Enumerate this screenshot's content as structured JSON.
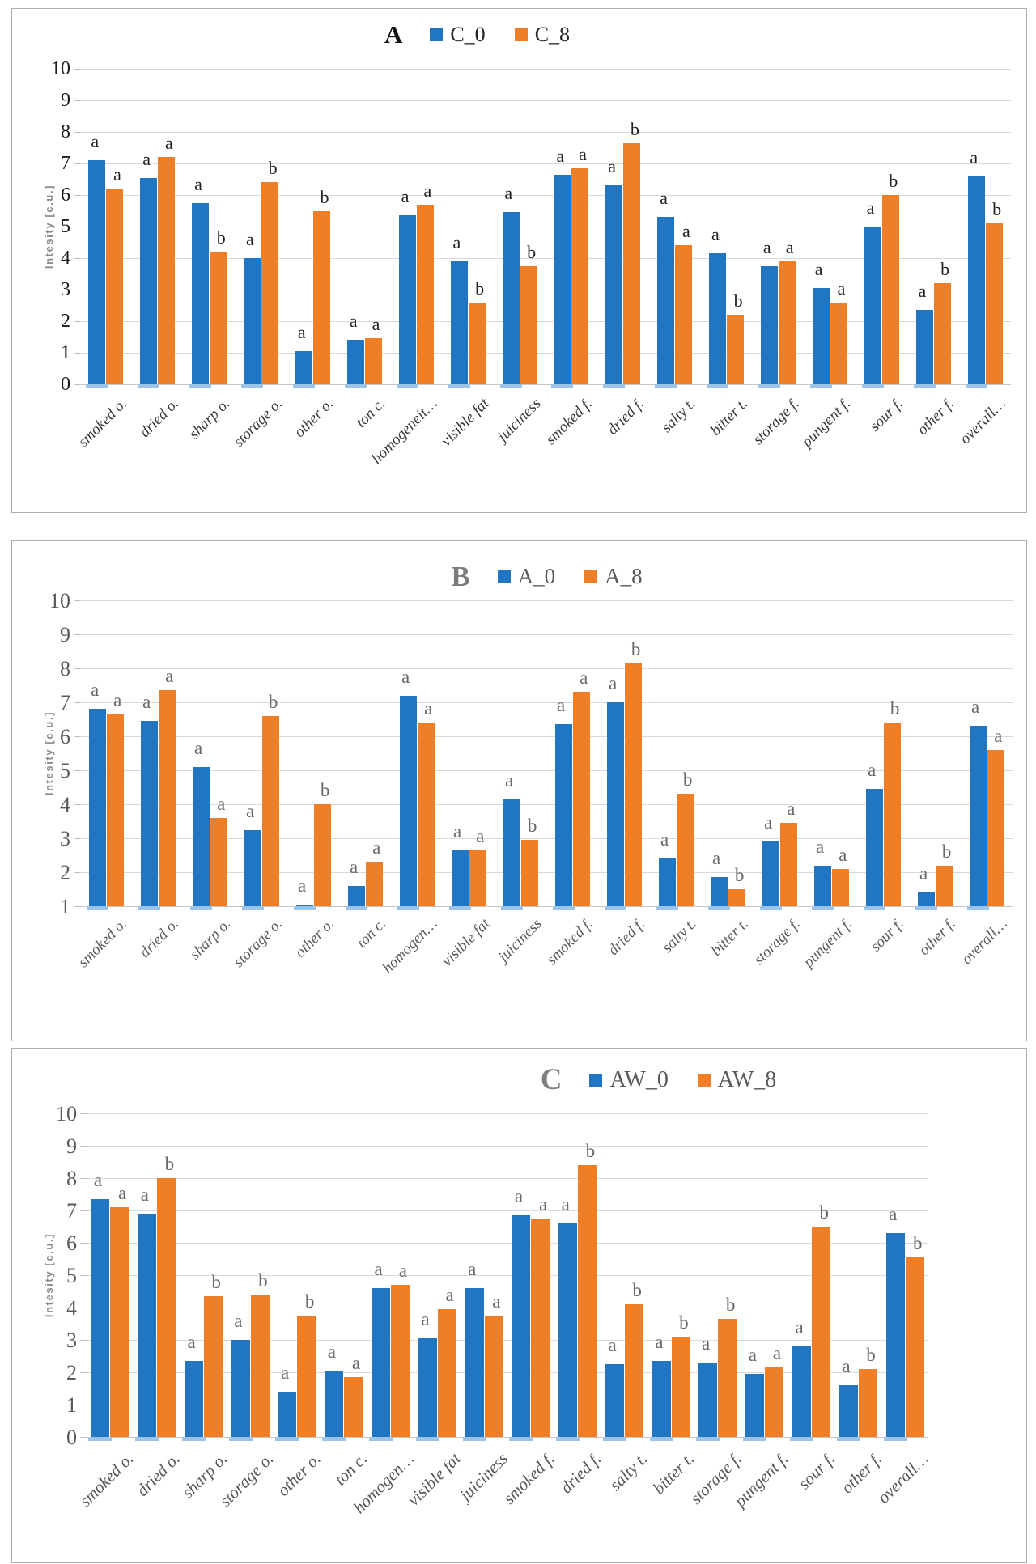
{
  "figure": {
    "y_axis_title": "Intesity [c.u.]",
    "significance_letters": [
      "a",
      "b"
    ]
  },
  "chart_data": [
    {
      "type": "bar",
      "title": "A",
      "ylabel": "Intesity [c.u.]",
      "ylim": [
        0,
        10
      ],
      "grid": true,
      "legend_position": "top",
      "categories": [
        "smoked o.",
        "dried o.",
        "sharp o.",
        "storage o.",
        "other o.",
        "ton c.",
        "homogeneit…",
        "visible fat",
        "juiciness",
        "smoked f.",
        "dried f.",
        "salty t.",
        "bitter t.",
        "storage f.",
        "pungent f.",
        "sour f.",
        "other f.",
        "overall…"
      ],
      "series": [
        {
          "name": "C_0",
          "color": "#2176C4",
          "values": [
            7.1,
            6.55,
            5.75,
            4.0,
            1.05,
            1.4,
            5.35,
            3.9,
            5.45,
            6.65,
            6.3,
            5.3,
            4.15,
            3.75,
            3.05,
            5.0,
            2.35,
            6.6
          ],
          "letters": [
            "a",
            "a",
            "a",
            "a",
            "a",
            "a",
            "a",
            "a",
            "a",
            "a",
            "a",
            "a",
            "a",
            "a",
            "a",
            "a",
            "a",
            "a"
          ]
        },
        {
          "name": "C_8",
          "color": "#F07E27",
          "values": [
            6.2,
            7.2,
            4.2,
            6.4,
            5.5,
            1.45,
            5.7,
            2.6,
            3.75,
            6.85,
            7.65,
            4.4,
            2.2,
            3.9,
            2.6,
            6.0,
            3.2,
            5.1
          ],
          "letters": [
            "a",
            "a",
            "b",
            "b",
            "b",
            "a",
            "a",
            "b",
            "b",
            "a",
            "b",
            "a",
            "b",
            "a",
            "a",
            "b",
            "b",
            "b"
          ]
        }
      ]
    },
    {
      "type": "bar",
      "title": "B",
      "ylabel": "Intesity [c.u.]",
      "ylim": [
        1,
        10
      ],
      "grid": true,
      "legend_position": "top",
      "categories": [
        "smoked o.",
        "dried o.",
        "sharp o.",
        "storage o.",
        "other o.",
        "ton c.",
        "homogen…",
        "visible fat",
        "juiciness",
        "smoked f.",
        "dried f.",
        "salty t.",
        "bitter t.",
        "storage f.",
        "pungent f.",
        "sour f.",
        "other f.",
        "overall…"
      ],
      "series": [
        {
          "name": "A_0",
          "color": "#2176C4",
          "values": [
            6.8,
            6.45,
            5.1,
            3.25,
            1.05,
            1.6,
            7.2,
            2.65,
            4.15,
            6.35,
            7.0,
            2.4,
            1.85,
            2.9,
            2.2,
            4.45,
            1.4,
            6.3
          ],
          "letters": [
            "a",
            "a",
            "a",
            "a",
            "a",
            "a",
            "a",
            "a",
            "a",
            "a",
            "a",
            "a",
            "a",
            "a",
            "a",
            "a",
            "a",
            "a"
          ]
        },
        {
          "name": "A_8",
          "color": "#F07E27",
          "values": [
            6.65,
            7.35,
            3.6,
            6.6,
            4.0,
            2.3,
            6.4,
            2.65,
            2.95,
            7.3,
            8.15,
            4.3,
            1.5,
            3.45,
            2.1,
            6.4,
            2.2,
            5.6
          ],
          "letters": [
            "a",
            "a",
            "a",
            "b",
            "b",
            "a",
            "a",
            "a",
            "b",
            "a",
            "b",
            "b",
            "b",
            "a",
            "a",
            "b",
            "b",
            "a"
          ]
        }
      ]
    },
    {
      "type": "bar",
      "title": "C",
      "ylabel": "Intesity [c.u.]",
      "ylim": [
        0,
        10
      ],
      "grid": true,
      "legend_position": "top",
      "categories": [
        "smoked o.",
        "dried o.",
        "sharp o.",
        "storage o.",
        "other o.",
        "ton c.",
        "homogen…",
        "visible fat",
        "juiciness",
        "smoked f.",
        "dried f.",
        "salty t.",
        "bitter t.",
        "storage f.",
        "pungent f.",
        "sour f.",
        "other f.",
        "overall…"
      ],
      "series": [
        {
          "name": "AW_0",
          "color": "#2176C4",
          "values": [
            7.35,
            6.9,
            2.35,
            3.0,
            1.4,
            2.05,
            4.6,
            3.05,
            4.6,
            6.85,
            6.6,
            2.25,
            2.35,
            2.3,
            1.95,
            2.8,
            1.6,
            6.3
          ],
          "letters": [
            "a",
            "a",
            "a",
            "a",
            "a",
            "a",
            "a",
            "a",
            "a",
            "a",
            "a",
            "a",
            "a",
            "a",
            "a",
            "a",
            "a",
            "a"
          ]
        },
        {
          "name": "AW_8",
          "color": "#F07E27",
          "values": [
            7.1,
            8.0,
            4.35,
            4.4,
            3.75,
            1.85,
            4.7,
            3.95,
            3.75,
            6.75,
            8.4,
            4.1,
            3.1,
            3.65,
            2.15,
            6.5,
            2.1,
            5.55
          ],
          "letters": [
            "a",
            "b",
            "b",
            "b",
            "b",
            "a",
            "a",
            "a",
            "a",
            "a",
            "b",
            "b",
            "b",
            "b",
            "a",
            "b",
            "b",
            "b"
          ]
        }
      ]
    }
  ]
}
